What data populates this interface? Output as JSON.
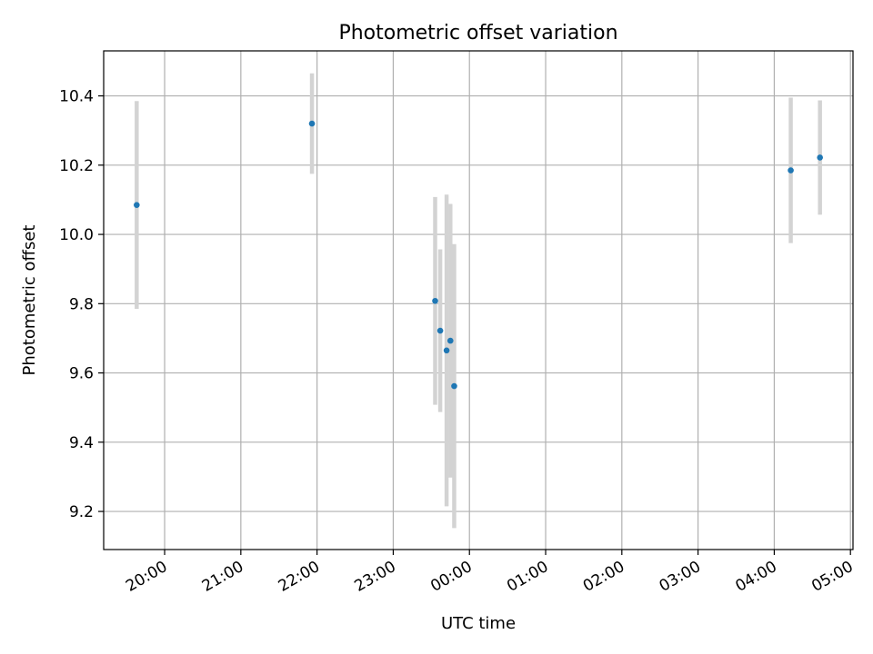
{
  "chart_data": {
    "type": "scatter",
    "title": "Photometric offset variation",
    "xlabel": "UTC time",
    "ylabel": "Photometric offset",
    "x_tick_labels": [
      "20:00",
      "21:00",
      "22:00",
      "23:00",
      "00:00",
      "01:00",
      "02:00",
      "03:00",
      "04:00",
      "05:00"
    ],
    "y_ticks": [
      9.2,
      9.4,
      9.6,
      9.8,
      10.0,
      10.2,
      10.4
    ],
    "y_tick_labels": [
      "9.2",
      "9.4",
      "9.6",
      "9.8",
      "10.0",
      "10.2",
      "10.4"
    ],
    "xlim": [
      "19:12",
      "05:02"
    ],
    "ylim": [
      9.09,
      10.53
    ],
    "grid": true,
    "point_color": "#1f77b4",
    "errorbar_color": "#d3d3d3",
    "points": [
      {
        "x": "19:38",
        "y": 10.085,
        "yerr": 0.3
      },
      {
        "x": "21:56",
        "y": 10.32,
        "yerr": 0.145
      },
      {
        "x": "23:33",
        "y": 9.808,
        "yerr": 0.3
      },
      {
        "x": "23:37",
        "y": 9.722,
        "yerr": 0.235
      },
      {
        "x": "23:42",
        "y": 9.665,
        "yerr": 0.45
      },
      {
        "x": "23:45",
        "y": 9.693,
        "yerr": 0.395
      },
      {
        "x": "23:48",
        "y": 9.562,
        "yerr": 0.41
      },
      {
        "x": "04:13",
        "y": 10.185,
        "yerr": 0.21
      },
      {
        "x": "04:36",
        "y": 10.222,
        "yerr": 0.165
      }
    ]
  }
}
